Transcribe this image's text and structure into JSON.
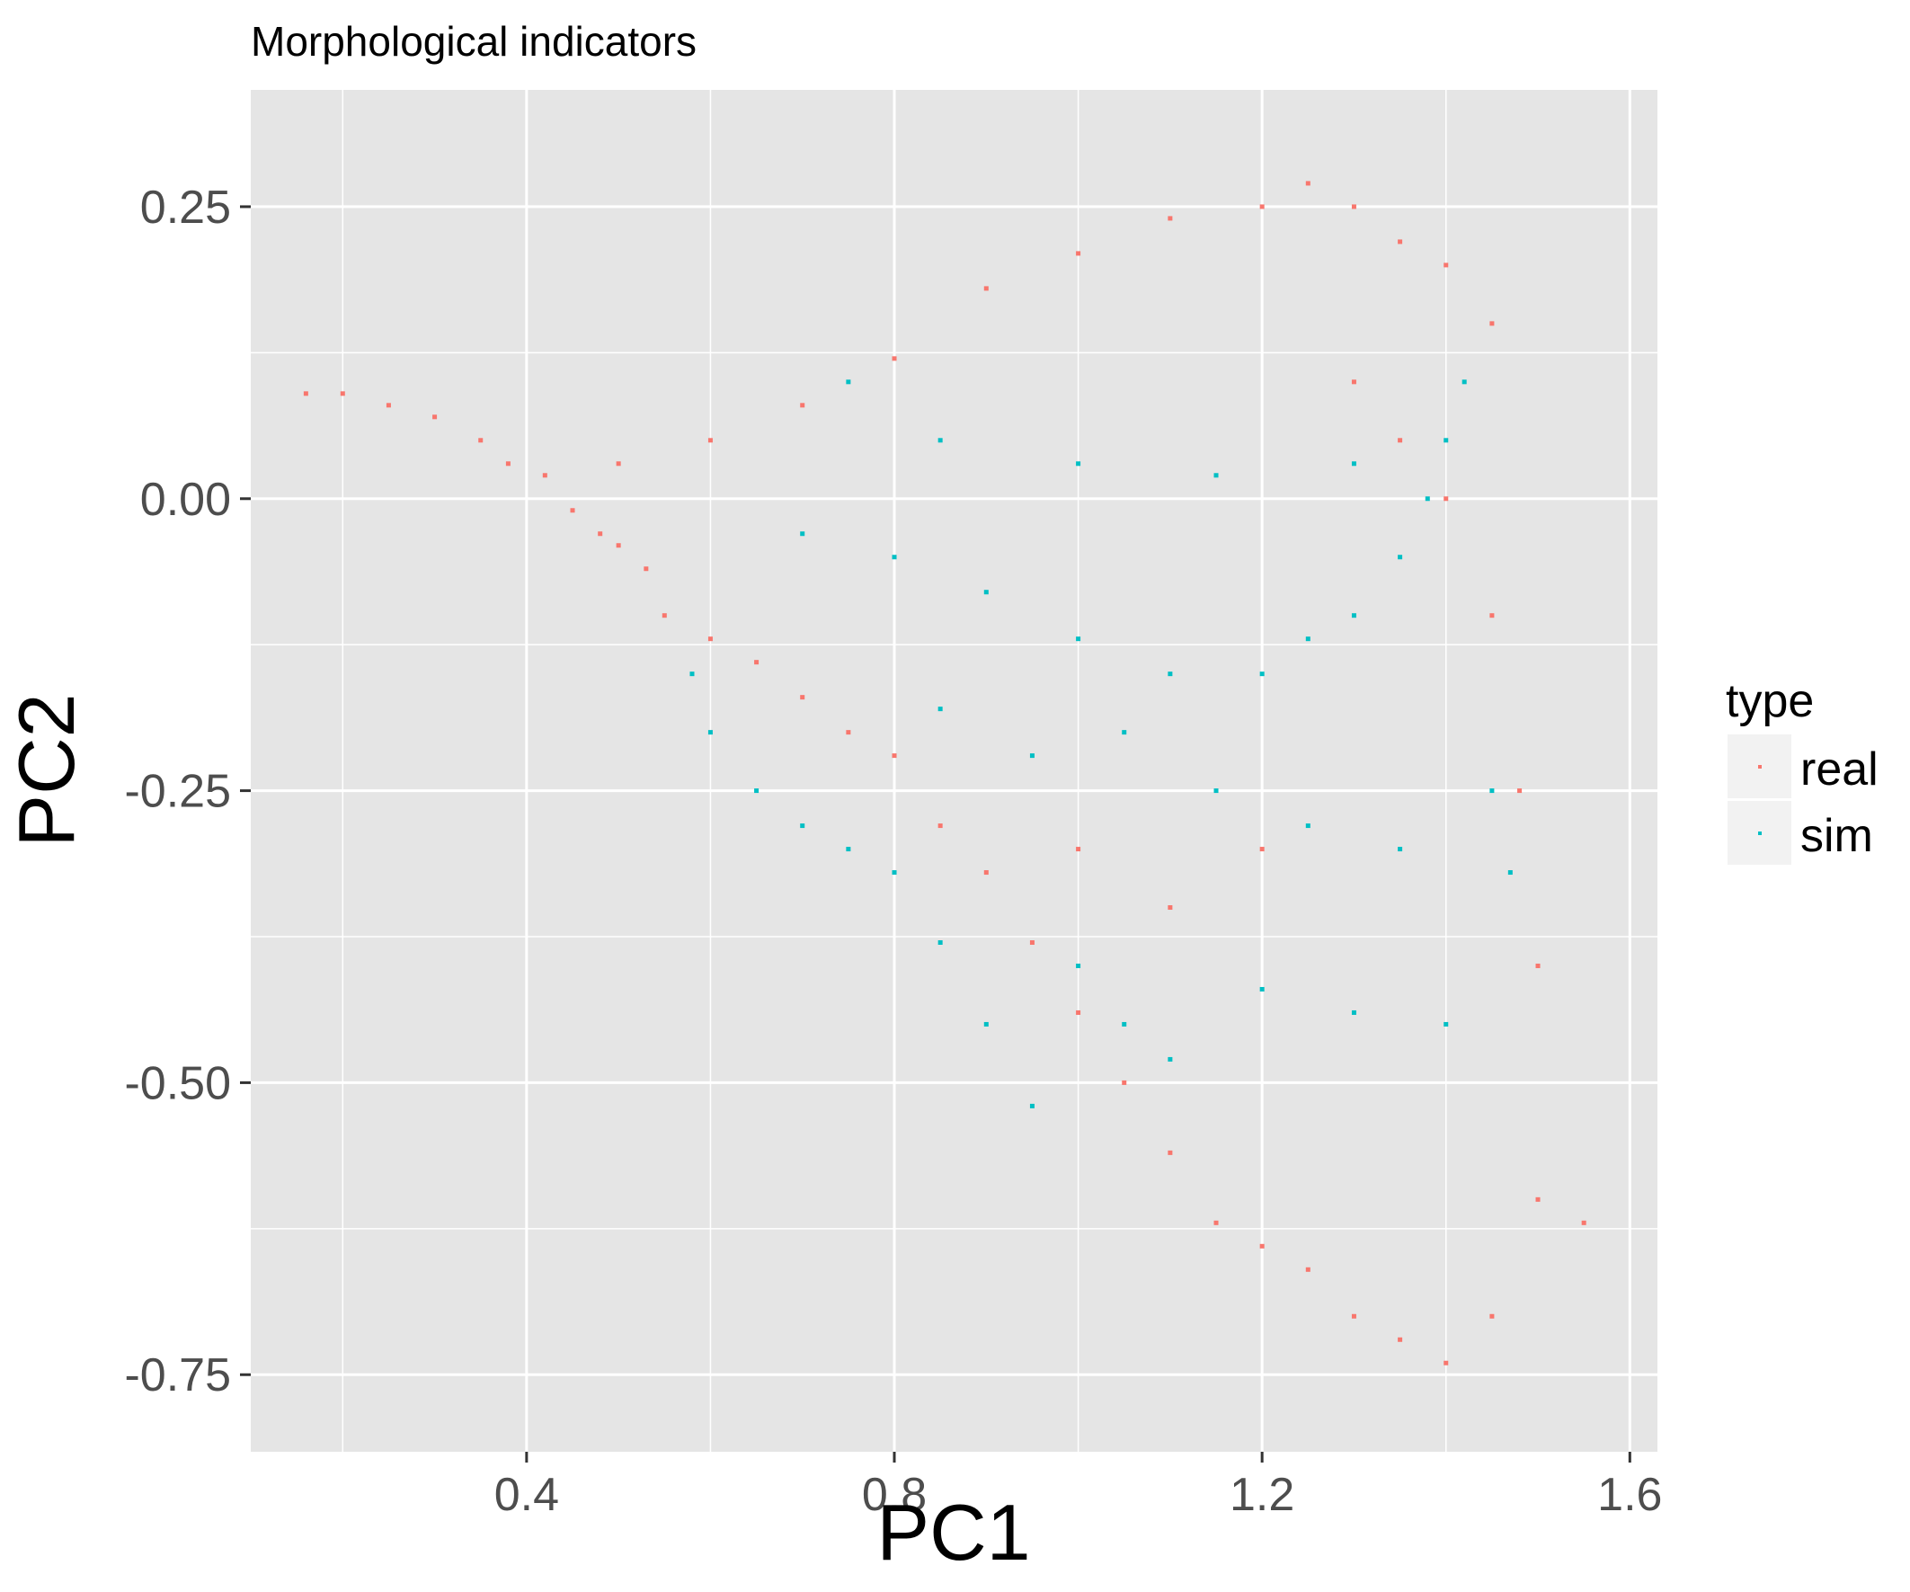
{
  "chart_data": {
    "type": "scatter",
    "title": "Morphological indicators",
    "xlabel": "PC1",
    "ylabel": "PC2",
    "xlim": [
      0.1,
      1.63
    ],
    "ylim": [
      -0.816,
      0.35
    ],
    "x_ticks": [
      0.4,
      0.8,
      1.2,
      1.6
    ],
    "x_tick_labels": [
      "0.4",
      "0.8",
      "1.2",
      "1.6"
    ],
    "y_ticks": [
      0.25,
      0.0,
      -0.25,
      -0.5,
      -0.75
    ],
    "y_tick_labels": [
      "0.25",
      "0.00",
      "-0.25",
      "-0.50",
      "-0.75"
    ],
    "grid": true,
    "legend": {
      "title": "type",
      "position": "right",
      "entries": [
        "real",
        "sim"
      ]
    },
    "colors": {
      "panel_background": "#e5e5e5",
      "grid_line": "#ffffff",
      "real": "#f8766d",
      "sim": "#00bfc4"
    },
    "series": [
      {
        "name": "real",
        "color": "#f8766d",
        "points": [
          [
            0.16,
            0.09
          ],
          [
            0.2,
            0.09
          ],
          [
            0.25,
            0.08
          ],
          [
            0.3,
            0.07
          ],
          [
            0.35,
            0.05
          ],
          [
            0.38,
            0.03
          ],
          [
            0.42,
            0.02
          ],
          [
            0.45,
            -0.01
          ],
          [
            0.48,
            -0.03
          ],
          [
            0.5,
            -0.04
          ],
          [
            0.53,
            -0.06
          ],
          [
            0.55,
            -0.1
          ],
          [
            0.6,
            -0.12
          ],
          [
            0.65,
            -0.14
          ],
          [
            0.7,
            -0.17
          ],
          [
            0.75,
            -0.2
          ],
          [
            0.8,
            -0.22
          ],
          [
            0.85,
            -0.28
          ],
          [
            0.9,
            -0.32
          ],
          [
            0.95,
            -0.38
          ],
          [
            1.0,
            -0.44
          ],
          [
            1.05,
            -0.5
          ],
          [
            1.1,
            -0.56
          ],
          [
            1.15,
            -0.62
          ],
          [
            1.2,
            -0.64
          ],
          [
            1.25,
            -0.66
          ],
          [
            1.3,
            -0.7
          ],
          [
            1.35,
            -0.72
          ],
          [
            1.4,
            -0.74
          ],
          [
            1.45,
            -0.7
          ],
          [
            1.5,
            -0.6
          ],
          [
            1.55,
            -0.62
          ],
          [
            1.45,
            0.15
          ],
          [
            1.4,
            0.2
          ],
          [
            1.35,
            0.22
          ],
          [
            1.3,
            0.25
          ],
          [
            1.25,
            0.27
          ],
          [
            1.2,
            0.25
          ],
          [
            1.1,
            0.24
          ],
          [
            1.0,
            0.21
          ],
          [
            0.9,
            0.18
          ],
          [
            0.8,
            0.12
          ],
          [
            0.7,
            0.08
          ],
          [
            0.6,
            0.05
          ],
          [
            0.5,
            0.03
          ],
          [
            1.3,
            0.1
          ],
          [
            1.35,
            0.05
          ],
          [
            1.4,
            0.0
          ],
          [
            1.45,
            -0.1
          ],
          [
            1.48,
            -0.25
          ],
          [
            1.5,
            -0.4
          ],
          [
            1.2,
            -0.3
          ],
          [
            1.1,
            -0.35
          ],
          [
            1.0,
            -0.3
          ]
        ]
      },
      {
        "name": "sim",
        "color": "#00bfc4",
        "points": [
          [
            0.58,
            -0.15
          ],
          [
            0.6,
            -0.2
          ],
          [
            0.65,
            -0.25
          ],
          [
            0.7,
            -0.28
          ],
          [
            0.75,
            -0.3
          ],
          [
            0.8,
            -0.32
          ],
          [
            0.85,
            -0.38
          ],
          [
            0.9,
            -0.45
          ],
          [
            0.95,
            -0.52
          ],
          [
            1.0,
            -0.4
          ],
          [
            1.05,
            -0.45
          ],
          [
            1.1,
            -0.48
          ],
          [
            1.2,
            -0.42
          ],
          [
            1.3,
            -0.44
          ],
          [
            1.4,
            -0.45
          ],
          [
            1.42,
            0.1
          ],
          [
            1.4,
            0.05
          ],
          [
            1.38,
            0.0
          ],
          [
            1.35,
            -0.05
          ],
          [
            1.3,
            -0.1
          ],
          [
            1.25,
            -0.12
          ],
          [
            1.2,
            -0.15
          ],
          [
            1.1,
            -0.15
          ],
          [
            1.0,
            -0.12
          ],
          [
            0.9,
            -0.08
          ],
          [
            0.8,
            -0.05
          ],
          [
            0.7,
            -0.03
          ],
          [
            0.75,
            0.1
          ],
          [
            0.85,
            0.05
          ],
          [
            1.0,
            0.03
          ],
          [
            1.15,
            0.02
          ],
          [
            1.3,
            0.03
          ],
          [
            1.45,
            -0.25
          ],
          [
            1.47,
            -0.32
          ],
          [
            1.35,
            -0.3
          ],
          [
            1.25,
            -0.28
          ],
          [
            1.15,
            -0.25
          ],
          [
            1.05,
            -0.2
          ],
          [
            0.95,
            -0.22
          ],
          [
            0.85,
            -0.18
          ]
        ]
      }
    ]
  }
}
